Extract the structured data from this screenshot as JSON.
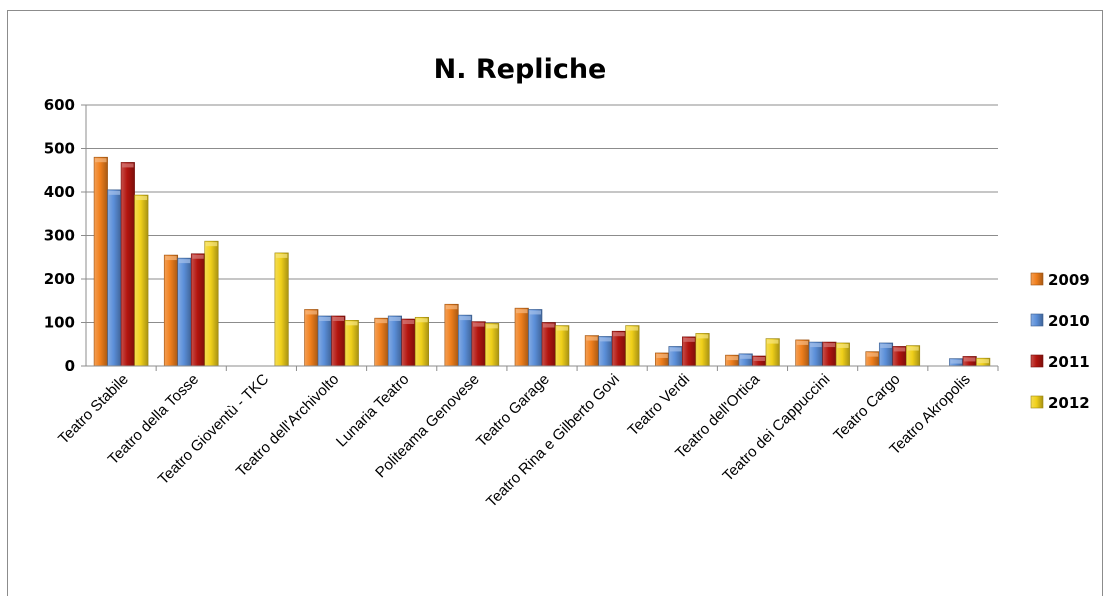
{
  "chart_data": {
    "type": "bar",
    "title": "N. Repliche",
    "xlabel": "",
    "ylabel": "",
    "ylim": [
      0,
      600
    ],
    "yticks": [
      0,
      100,
      200,
      300,
      400,
      500,
      600
    ],
    "grid": true,
    "legend_position": "right",
    "categories": [
      "Teatro Stabile",
      "Teatro della Tosse",
      "Teatro Gioventù - TKC",
      "Teatro dell'Archivolto",
      "Lunaria Teatro",
      "Politeama Genovese",
      "Teatro Garage",
      "Teatro Rina e Gilberto Govi",
      "Teatro Verdi",
      "Teatro dell'Ortica",
      "Teatro dei Cappuccini",
      "Teatro Cargo",
      "Teatro Akropolis"
    ],
    "series": [
      {
        "name": "2009",
        "color": "#f07f1c",
        "values": [
          480,
          255,
          0,
          130,
          110,
          142,
          133,
          70,
          30,
          25,
          60,
          33,
          0
        ]
      },
      {
        "name": "2010",
        "color": "#5b8fd9",
        "values": [
          405,
          248,
          0,
          115,
          115,
          117,
          130,
          68,
          45,
          28,
          55,
          53,
          17
        ]
      },
      {
        "name": "2011",
        "color": "#b3150f",
        "values": [
          468,
          258,
          0,
          115,
          108,
          102,
          100,
          80,
          67,
          23,
          55,
          45,
          22
        ]
      },
      {
        "name": "2012",
        "color": "#f0d01a",
        "values": [
          393,
          287,
          260,
          105,
          112,
          98,
          93,
          93,
          75,
          63,
          53,
          47,
          18
        ]
      }
    ]
  }
}
